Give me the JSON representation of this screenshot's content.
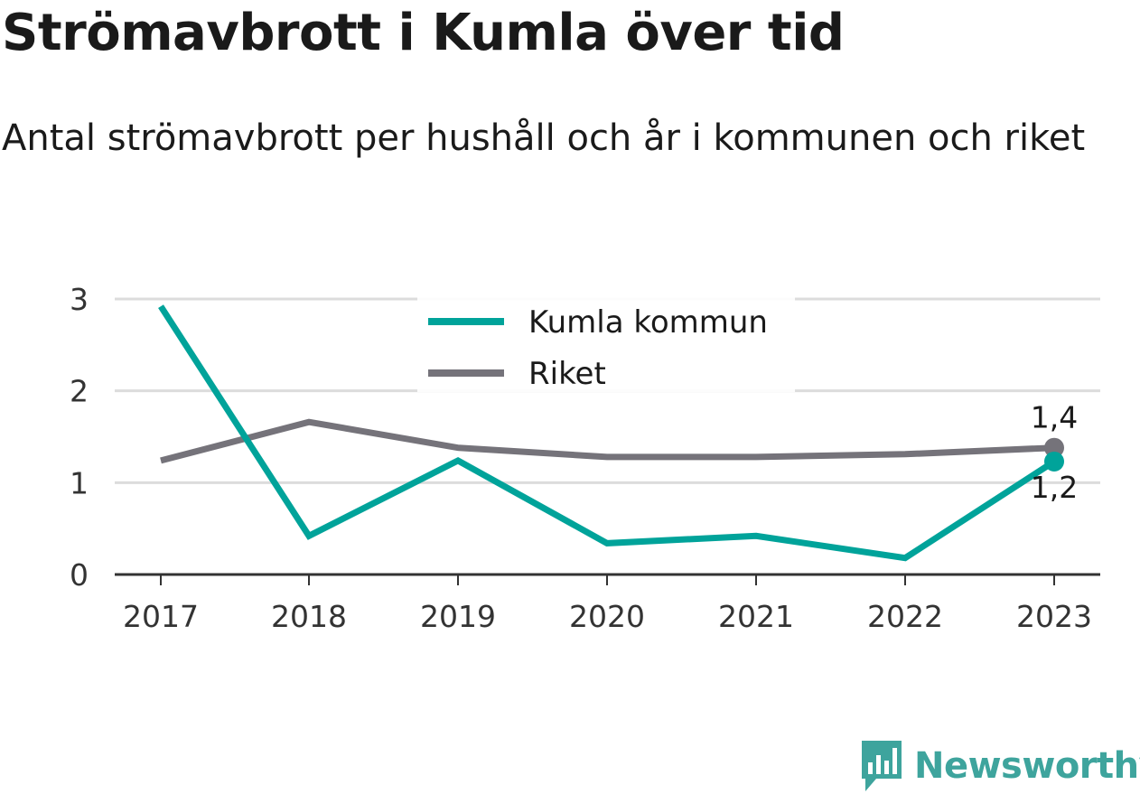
{
  "header": {
    "title": "Strömavbrott i Kumla över tid",
    "subtitle": "Antal strömavbrott per hushåll och år i kommunen och riket"
  },
  "chart_data": {
    "type": "line",
    "title": "Strömavbrott i Kumla över tid",
    "subtitle": "Antal strömavbrott per hushåll och år i kommunen och riket",
    "xlabel": "",
    "ylabel": "",
    "categories": [
      "2017",
      "2018",
      "2019",
      "2020",
      "2021",
      "2022",
      "2023"
    ],
    "yticks": [
      "0",
      "1",
      "2",
      "3"
    ],
    "ylim": [
      0,
      3
    ],
    "grid": true,
    "legend": "top-center",
    "series": [
      {
        "name": "Kumla kommun",
        "color": "#00a39a",
        "values": [
          2.92,
          0.42,
          1.24,
          0.34,
          0.42,
          0.18,
          1.23
        ],
        "end_label": "1,2"
      },
      {
        "name": "Riket",
        "color": "#75737a",
        "values": [
          1.24,
          1.66,
          1.38,
          1.28,
          1.28,
          1.31,
          1.38
        ],
        "end_label": "1,4"
      }
    ]
  },
  "brand": {
    "name": "Newsworthy",
    "color": "#3ea49d",
    "icon": "bar-chart-bubble-icon"
  }
}
